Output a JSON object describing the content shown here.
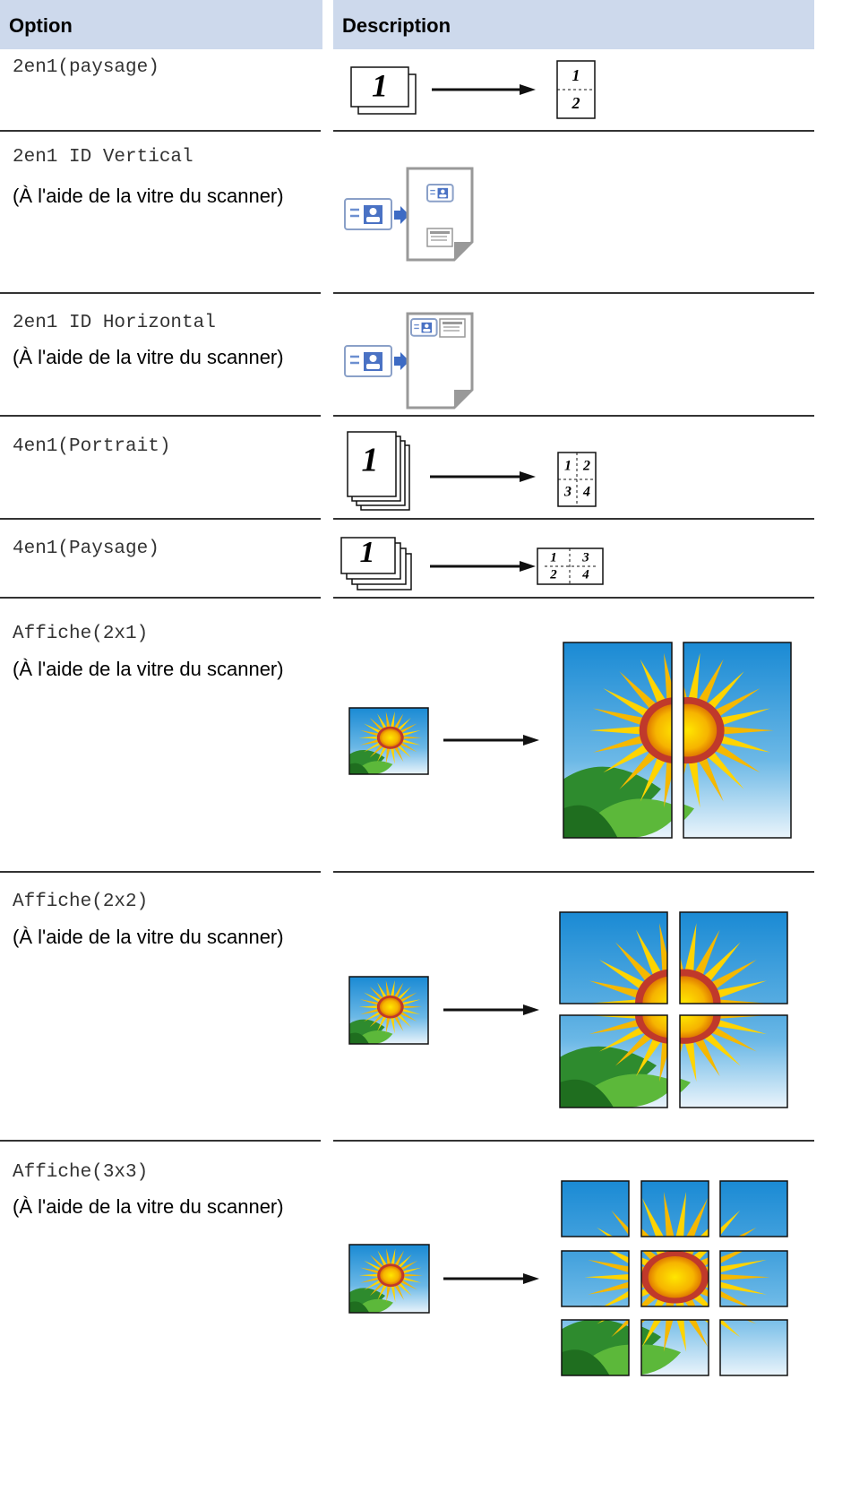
{
  "header": {
    "option": "Option",
    "description": "Description"
  },
  "rows": [
    {
      "option": "2en1(paysage)",
      "figure": [
        "1",
        "1",
        "2"
      ]
    },
    {
      "option": "2en1 ID Vertical",
      "note": "(À l'aide de la vitre du scanner)"
    },
    {
      "option": "2en1 ID Horizontal",
      "note": "(À l'aide de la vitre du scanner)"
    },
    {
      "option": "4en1(Portrait)",
      "figure": [
        "1",
        "1",
        "2",
        "3",
        "4"
      ]
    },
    {
      "option": "4en1(Paysage)",
      "figure": [
        "1",
        "1",
        "3",
        "2",
        "4"
      ]
    },
    {
      "option": "Affiche(2x1)",
      "note": "(À l'aide de la vitre du scanner)"
    },
    {
      "option": "Affiche(2x2)",
      "note": "(À l'aide de la vitre du scanner)"
    },
    {
      "option": "Affiche(3x3)",
      "note": "(À l'aide de la vitre du scanner)"
    }
  ]
}
